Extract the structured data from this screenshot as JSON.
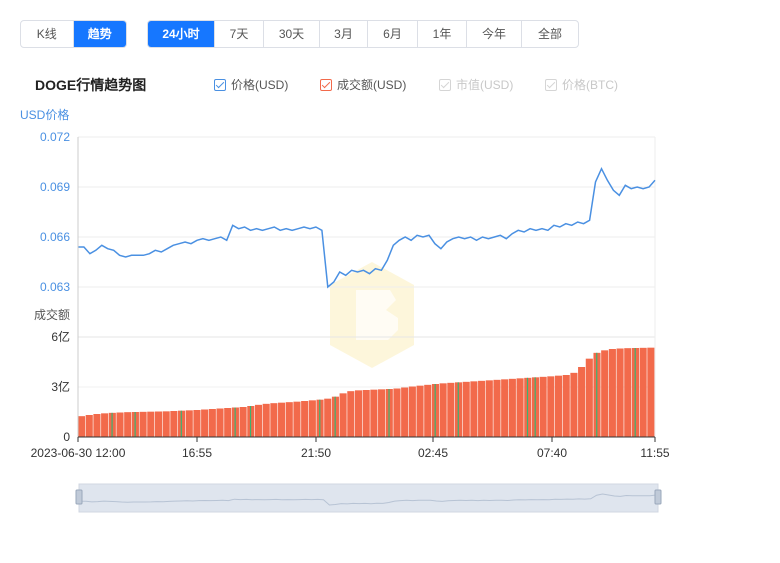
{
  "view_tabs": [
    {
      "label": "K线",
      "active": false
    },
    {
      "label": "趋势",
      "active": true
    }
  ],
  "range_tabs": [
    {
      "label": "24小时",
      "active": true
    },
    {
      "label": "7天",
      "active": false
    },
    {
      "label": "30天",
      "active": false
    },
    {
      "label": "3月",
      "active": false
    },
    {
      "label": "6月",
      "active": false
    },
    {
      "label": "1年",
      "active": false
    },
    {
      "label": "今年",
      "active": false
    },
    {
      "label": "全部",
      "active": false
    }
  ],
  "title": "DOGE行情趋势图",
  "legend": [
    {
      "label": "价格(USD)",
      "enabled": true,
      "color": "#4a90e2"
    },
    {
      "label": "成交额(USD)",
      "enabled": true,
      "color": "#f26a4b"
    },
    {
      "label": "市值(USD)",
      "enabled": false,
      "color": "#d5d5d5"
    },
    {
      "label": "价格(BTC)",
      "enabled": false,
      "color": "#d5d5d5"
    }
  ],
  "colors": {
    "accent": "#1677ff",
    "price_line": "#4a90e2",
    "volume_bar": "#f26a4b",
    "volume_bar_alt": "#3cb371",
    "axis_text": "#4a90e2",
    "watermark": "#fdf6d8"
  },
  "chart_data": {
    "type": "line+bar",
    "price_axis": {
      "label": "USD价格",
      "ylim": [
        0.063,
        0.072
      ],
      "ticks": [
        "0.072",
        "0.069",
        "0.066",
        "0.063"
      ]
    },
    "volume_axis": {
      "label": "成交额",
      "ylim": [
        0,
        600000000
      ],
      "ticks": [
        "6亿",
        "3亿",
        "0"
      ]
    },
    "x_ticks": [
      "2023-06-30 12:00",
      "16:55",
      "21:50",
      "02:45",
      "07:40",
      "11:55"
    ],
    "grid": true,
    "series": [
      {
        "name": "价格(USD)",
        "kind": "line",
        "values": [
          0.0654,
          0.0654,
          0.065,
          0.0652,
          0.0655,
          0.0653,
          0.0652,
          0.0649,
          0.0648,
          0.0649,
          0.0649,
          0.0649,
          0.065,
          0.0652,
          0.0651,
          0.0653,
          0.0655,
          0.0656,
          0.0657,
          0.0656,
          0.0658,
          0.0659,
          0.0658,
          0.0659,
          0.066,
          0.0658,
          0.0667,
          0.0665,
          0.0666,
          0.0664,
          0.0665,
          0.0664,
          0.0665,
          0.0666,
          0.0664,
          0.0665,
          0.0664,
          0.0665,
          0.0666,
          0.0665,
          0.0666,
          0.0664,
          0.063,
          0.0633,
          0.0639,
          0.0637,
          0.064,
          0.0639,
          0.064,
          0.0638,
          0.0641,
          0.064,
          0.0646,
          0.0655,
          0.0658,
          0.066,
          0.0658,
          0.0661,
          0.066,
          0.0661,
          0.0656,
          0.0653,
          0.0657,
          0.0659,
          0.066,
          0.0659,
          0.066,
          0.0658,
          0.066,
          0.0659,
          0.066,
          0.0661,
          0.0659,
          0.0662,
          0.0664,
          0.0663,
          0.0665,
          0.0664,
          0.0665,
          0.0664,
          0.0667,
          0.0666,
          0.0668,
          0.0667,
          0.0669,
          0.0668,
          0.067,
          0.0693,
          0.0701,
          0.0694,
          0.0688,
          0.0685,
          0.0691,
          0.0689,
          0.069,
          0.0689,
          0.069,
          0.0694
        ]
      },
      {
        "name": "成交额(USD)",
        "kind": "bar",
        "values": [
          125000000,
          132000000,
          138000000,
          142000000,
          145000000,
          147000000,
          149000000,
          150000000,
          151000000,
          152000000,
          153000000,
          154000000,
          156000000,
          158000000,
          160000000,
          162000000,
          165000000,
          168000000,
          171000000,
          174000000,
          177000000,
          180000000,
          186000000,
          193000000,
          199000000,
          203000000,
          206000000,
          209000000,
          212000000,
          216000000,
          220000000,
          224000000,
          230000000,
          242000000,
          262000000,
          275000000,
          280000000,
          282000000,
          284000000,
          286000000,
          288000000,
          291000000,
          297000000,
          303000000,
          308000000,
          313000000,
          318000000,
          322000000,
          325000000,
          328000000,
          331000000,
          334000000,
          337000000,
          340000000,
          343000000,
          346000000,
          349000000,
          352000000,
          355000000,
          358000000,
          361000000,
          364000000,
          368000000,
          372000000,
          385000000,
          420000000,
          470000000,
          505000000,
          520000000,
          528000000,
          531000000,
          533000000,
          534000000,
          535000000,
          536000000
        ]
      }
    ]
  }
}
